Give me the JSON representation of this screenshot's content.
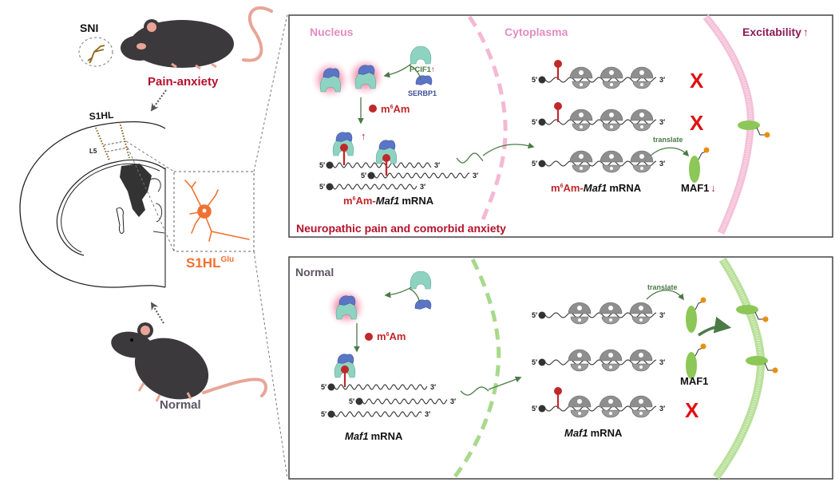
{
  "left": {
    "sni": "SNI",
    "pain_anxiety": "Pain-anxiety",
    "region": "S1HL",
    "layer": "L5",
    "cell_type": {
      "main": "S1HL",
      "sup": "Glu"
    },
    "normal": "Normal"
  },
  "common": {
    "five_prime": "5′",
    "three_prime": "3′",
    "blocked": "X",
    "m6am": {
      "m": "m",
      "sup": "6",
      "am": "Am"
    },
    "maf1_gene": "Maf1",
    "mrna": "mRNA",
    "m6am_prefix": "m",
    "m6am_dash": "Am-",
    "translate": "translate",
    "maf1_protein": "MAF1"
  },
  "top_panel": {
    "nucleus": "Nucleus",
    "cytoplasma": "Cytoplasma",
    "excitability": "Excitability",
    "up_arrow": "↑",
    "down_arrow": "↓",
    "pcif1": "PCIF1",
    "serbp1": "SERBP1",
    "condition": "Neuropathic pain and comorbid anxiety"
  },
  "bottom_panel": {
    "condition": "Normal"
  },
  "colors": {
    "pain_red": "#b5122b",
    "nucleus_pink": "#e48cc4",
    "excitability_purple": "#8c1b5c",
    "normal_gray": "#5d5563",
    "glutamatergic_orange": "#f07232",
    "m6am_red": "#c0282a",
    "pcif1_teal": "#8ed3c2",
    "serbp1_blue": "#5b75c6",
    "maf1_green": "#8cc757",
    "arrow_green": "#4b7a46",
    "ribosome_gray": "#8e8e8e",
    "membrane_pink": "#f4c0d8",
    "membrane_green": "#b9e09a"
  }
}
